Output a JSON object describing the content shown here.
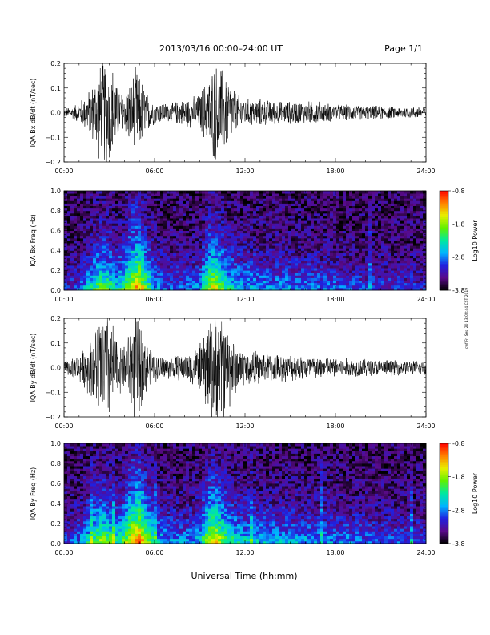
{
  "header": {
    "title": "2013/03/16  00:00–24:00 UT",
    "page": "Page 1/1"
  },
  "footer": {
    "xlabel": "Universal Time (hh:mm)",
    "stamp": "cwf Fri Sep 20 13:08:44 CST 2019"
  },
  "colors": {
    "trace": "#000000",
    "colormap": [
      "#000000",
      "#5a0a8a",
      "#2020e0",
      "#00b4ff",
      "#00e8a0",
      "#60f000",
      "#e8f000",
      "#ff8000",
      "#ff0000"
    ]
  },
  "chart_data": [
    {
      "type": "line",
      "ylabel": "IQA Bx dB/dt (nT/sec)",
      "xlim": [
        0,
        24
      ],
      "ylim": [
        -0.2,
        0.2
      ],
      "x_ticks": [
        "00:00",
        "06:00",
        "12:00",
        "18:00",
        "24:00"
      ],
      "y_ticks": [
        "−0.2",
        "−0.1",
        "0.0",
        "0.1",
        "0.2"
      ],
      "x_tick_values": [
        0,
        6,
        12,
        18,
        24
      ],
      "y_tick_values": [
        -0.2,
        -0.1,
        0.0,
        0.1,
        0.2
      ],
      "envelope": {
        "x_hours": [
          0,
          0.5,
          1.0,
          1.5,
          2.0,
          2.4,
          2.8,
          3.2,
          3.5,
          4.0,
          4.4,
          4.8,
          5.2,
          5.6,
          6.0,
          7.0,
          8.0,
          9.0,
          9.5,
          10.0,
          10.5,
          11.0,
          11.5,
          12.0,
          13.0,
          14.0,
          15.0,
          16.0,
          17.0,
          18.0,
          19.0,
          20.0,
          21.0,
          22.0,
          23.0,
          24.0
        ],
        "amplitude": [
          0.02,
          0.025,
          0.05,
          0.08,
          0.14,
          0.22,
          0.24,
          0.22,
          0.12,
          0.08,
          0.16,
          0.2,
          0.14,
          0.08,
          0.05,
          0.04,
          0.06,
          0.08,
          0.16,
          0.22,
          0.2,
          0.14,
          0.08,
          0.06,
          0.06,
          0.05,
          0.05,
          0.05,
          0.05,
          0.035,
          0.035,
          0.03,
          0.03,
          0.025,
          0.025,
          0.03
        ]
      }
    },
    {
      "type": "heatmap",
      "ylabel": "IQA Bx Freq (Hz)",
      "xlim": [
        0,
        24
      ],
      "ylim": [
        0,
        1.0
      ],
      "x_ticks": [
        "00:00",
        "06:00",
        "12:00",
        "18:00",
        "24:00"
      ],
      "y_ticks": [
        "0.0",
        "0.2",
        "0.4",
        "0.6",
        "0.8",
        "1.0"
      ],
      "x_tick_values": [
        0,
        6,
        12,
        18,
        24
      ],
      "y_tick_values": [
        0,
        0.2,
        0.4,
        0.6,
        0.8,
        1.0
      ],
      "colorbar": {
        "label": "Log10 Power",
        "range": [
          -3.8,
          -0.8
        ],
        "ticks": [
          "-0.8",
          "-1.8",
          "-2.8",
          "-3.8"
        ],
        "tick_values": [
          -0.8,
          -1.8,
          -2.8,
          -3.8
        ]
      },
      "activity": {
        "x_hours": [
          0,
          1,
          1.5,
          2,
          2.5,
          3,
          3.5,
          4,
          4.5,
          5,
          5.5,
          6,
          7,
          8,
          9,
          9.5,
          10,
          10.5,
          11,
          11.5,
          12,
          14,
          16,
          18,
          20,
          22,
          24
        ],
        "level": [
          0.15,
          0.2,
          0.35,
          0.5,
          0.6,
          0.55,
          0.4,
          0.55,
          0.8,
          0.85,
          0.6,
          0.35,
          0.25,
          0.25,
          0.3,
          0.65,
          0.75,
          0.6,
          0.45,
          0.4,
          0.35,
          0.3,
          0.28,
          0.25,
          0.2,
          0.18,
          0.15
        ]
      }
    },
    {
      "type": "line",
      "ylabel": "IQA By dB/dt (nT/sec)",
      "xlim": [
        0,
        24
      ],
      "ylim": [
        -0.2,
        0.2
      ],
      "x_ticks": [
        "00:00",
        "06:00",
        "12:00",
        "18:00",
        "24:00"
      ],
      "y_ticks": [
        "−0.2",
        "−0.1",
        "0.0",
        "0.1",
        "0.2"
      ],
      "x_tick_values": [
        0,
        6,
        12,
        18,
        24
      ],
      "y_tick_values": [
        -0.2,
        -0.1,
        0.0,
        0.1,
        0.2
      ],
      "envelope": {
        "x_hours": [
          0,
          0.5,
          1.0,
          1.5,
          2.0,
          2.4,
          2.8,
          3.2,
          3.5,
          4.0,
          4.4,
          4.8,
          5.2,
          5.6,
          6.0,
          7.0,
          8.0,
          9.0,
          9.5,
          10.0,
          10.5,
          11.0,
          11.5,
          12.0,
          13.0,
          14.0,
          15.0,
          16.0,
          17.0,
          18.0,
          19.0,
          20.0,
          21.0,
          22.0,
          23.0,
          24.0
        ],
        "amplitude": [
          0.03,
          0.04,
          0.06,
          0.1,
          0.16,
          0.24,
          0.26,
          0.22,
          0.12,
          0.1,
          0.2,
          0.24,
          0.16,
          0.09,
          0.06,
          0.05,
          0.06,
          0.1,
          0.2,
          0.26,
          0.24,
          0.18,
          0.1,
          0.08,
          0.07,
          0.06,
          0.06,
          0.06,
          0.05,
          0.045,
          0.04,
          0.04,
          0.035,
          0.035,
          0.03,
          0.035
        ]
      }
    },
    {
      "type": "heatmap",
      "ylabel": "IQA By Freq (Hz)",
      "xlim": [
        0,
        24
      ],
      "ylim": [
        0,
        1.0
      ],
      "x_ticks": [
        "00:00",
        "06:00",
        "12:00",
        "18:00",
        "24:00"
      ],
      "y_ticks": [
        "0.0",
        "0.2",
        "0.4",
        "0.6",
        "0.8",
        "1.0"
      ],
      "x_tick_values": [
        0,
        6,
        12,
        18,
        24
      ],
      "y_tick_values": [
        0,
        0.2,
        0.4,
        0.6,
        0.8,
        1.0
      ],
      "colorbar": {
        "label": "Log10 Power",
        "range": [
          -3.8,
          -0.8
        ],
        "ticks": [
          "-0.8",
          "-1.8",
          "-2.8",
          "-3.8"
        ],
        "tick_values": [
          -0.8,
          -1.8,
          -2.8,
          -3.8
        ]
      },
      "activity": {
        "x_hours": [
          0,
          1,
          1.5,
          2,
          2.5,
          3,
          3.5,
          4,
          4.5,
          5,
          5.5,
          6,
          7,
          8,
          9,
          9.5,
          10,
          10.5,
          11,
          11.5,
          12,
          14,
          16,
          18,
          20,
          22,
          24
        ],
        "level": [
          0.2,
          0.25,
          0.4,
          0.55,
          0.65,
          0.6,
          0.45,
          0.6,
          0.85,
          0.9,
          0.7,
          0.4,
          0.3,
          0.3,
          0.35,
          0.7,
          0.8,
          0.65,
          0.5,
          0.45,
          0.4,
          0.35,
          0.32,
          0.3,
          0.25,
          0.22,
          0.2
        ]
      }
    }
  ]
}
